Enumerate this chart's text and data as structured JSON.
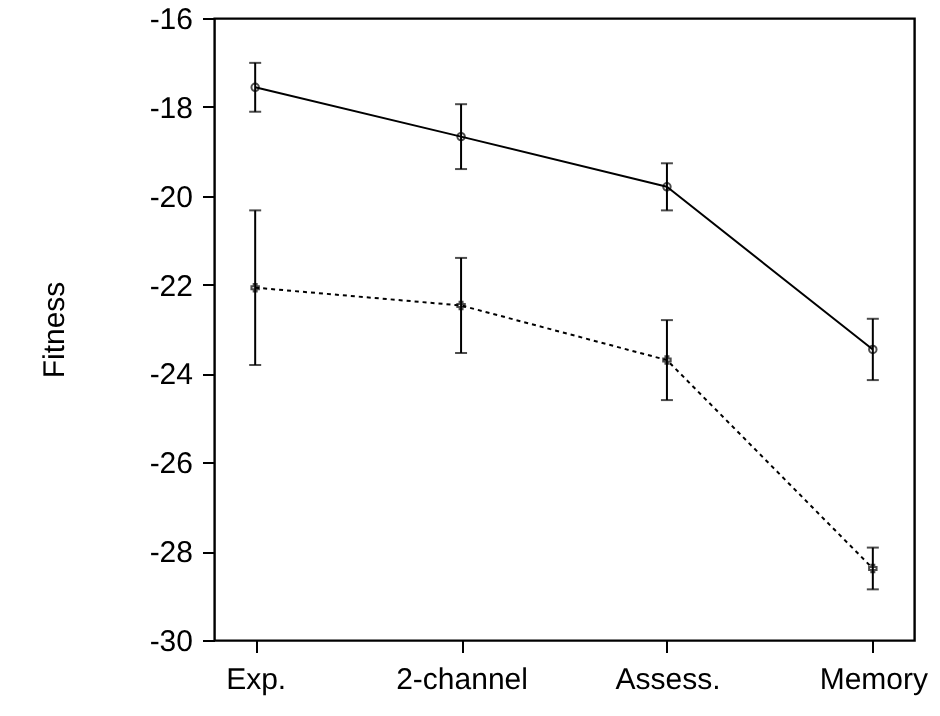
{
  "chart_data": {
    "type": "line",
    "ylabel": "Fitness",
    "categories": [
      "Exp.",
      "2-channel",
      "Assess.",
      "Memory"
    ],
    "series": [
      {
        "color": "#000000",
        "line_style": "solid",
        "marker": "circle",
        "values": [
          -17.56,
          -18.67,
          -19.8,
          -23.46
        ],
        "errors": [
          0.55,
          0.73,
          0.53,
          0.69
        ]
      },
      {
        "color": "#000000",
        "line_style": "dotted",
        "marker": "cross",
        "values": [
          -22.07,
          -22.47,
          -23.7,
          -28.39
        ],
        "errors": [
          1.74,
          1.07,
          0.9,
          0.47
        ]
      }
    ],
    "ylim": [
      -30,
      -16
    ],
    "yticks": [
      -30,
      -28,
      -26,
      -24,
      -22,
      -20,
      -18,
      -16
    ],
    "grid": false
  }
}
